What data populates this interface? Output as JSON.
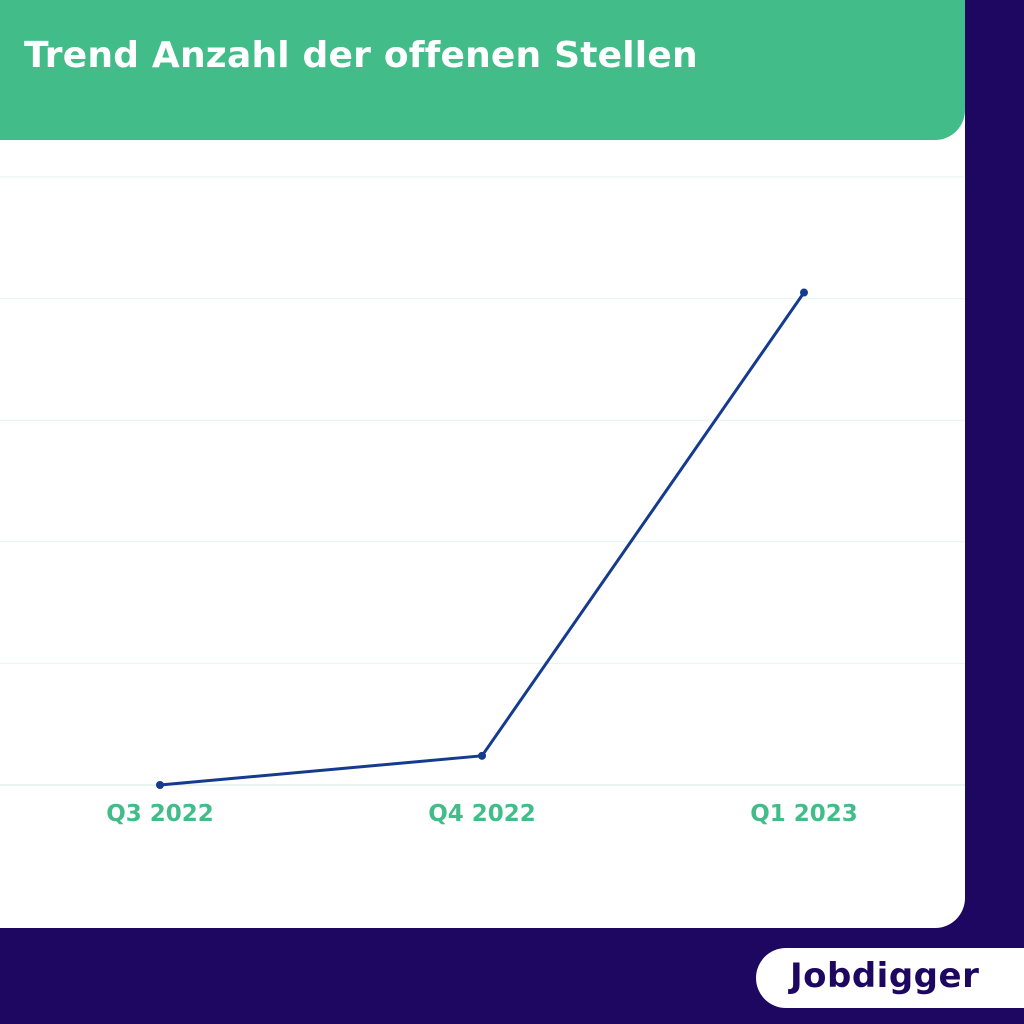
{
  "header": {
    "title": "Trend Anzahl der offenen Stellen"
  },
  "brand": {
    "logo_text": "Jobdigger"
  },
  "colors": {
    "background": "#1e0760",
    "header": "#42bd8a",
    "line": "#153b8f",
    "tick_label": "#42bd8a",
    "grid": "#e3f4ee"
  },
  "chart_data": {
    "type": "line",
    "title": "Trend Anzahl der offenen Stellen",
    "xlabel": "",
    "ylabel": "",
    "categories": [
      "Q3 2022",
      "Q4 2022",
      "Q1 2023"
    ],
    "values": [
      0,
      0.24,
      4.05
    ],
    "ylim": [
      0,
      5
    ],
    "grid": true,
    "y_tick_labels_shown": false,
    "legend": "none"
  }
}
